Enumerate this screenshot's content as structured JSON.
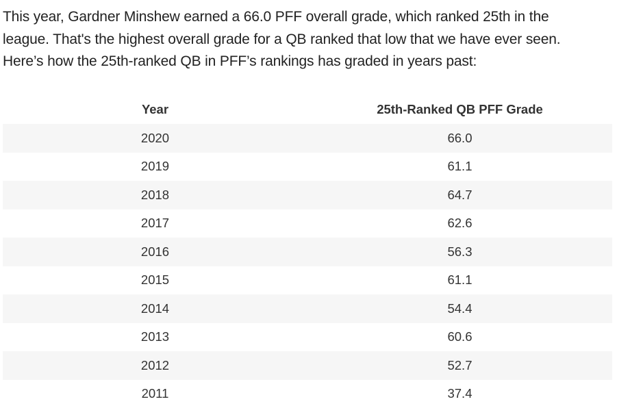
{
  "article": {
    "intro_line1": "This year, Gardner Minshew earned a 66.0 PFF overall grade, which ranked 25th in the",
    "intro_line2": "league. That's the highest overall grade for a QB ranked that low that we have ever seen.",
    "intro_line3": "Here’s how the 25th-ranked QB in PFF’s rankings has graded in years past:"
  },
  "table": {
    "headers": [
      "Year",
      "25th-Ranked QB PFF Grade"
    ],
    "rows": [
      [
        "2020",
        "66.0"
      ],
      [
        "2019",
        "61.1"
      ],
      [
        "2018",
        "64.7"
      ],
      [
        "2017",
        "62.6"
      ],
      [
        "2016",
        "56.3"
      ],
      [
        "2015",
        "61.1"
      ],
      [
        "2014",
        "54.4"
      ],
      [
        "2013",
        "60.6"
      ],
      [
        "2012",
        "52.7"
      ],
      [
        "2011",
        "37.4"
      ]
    ]
  }
}
